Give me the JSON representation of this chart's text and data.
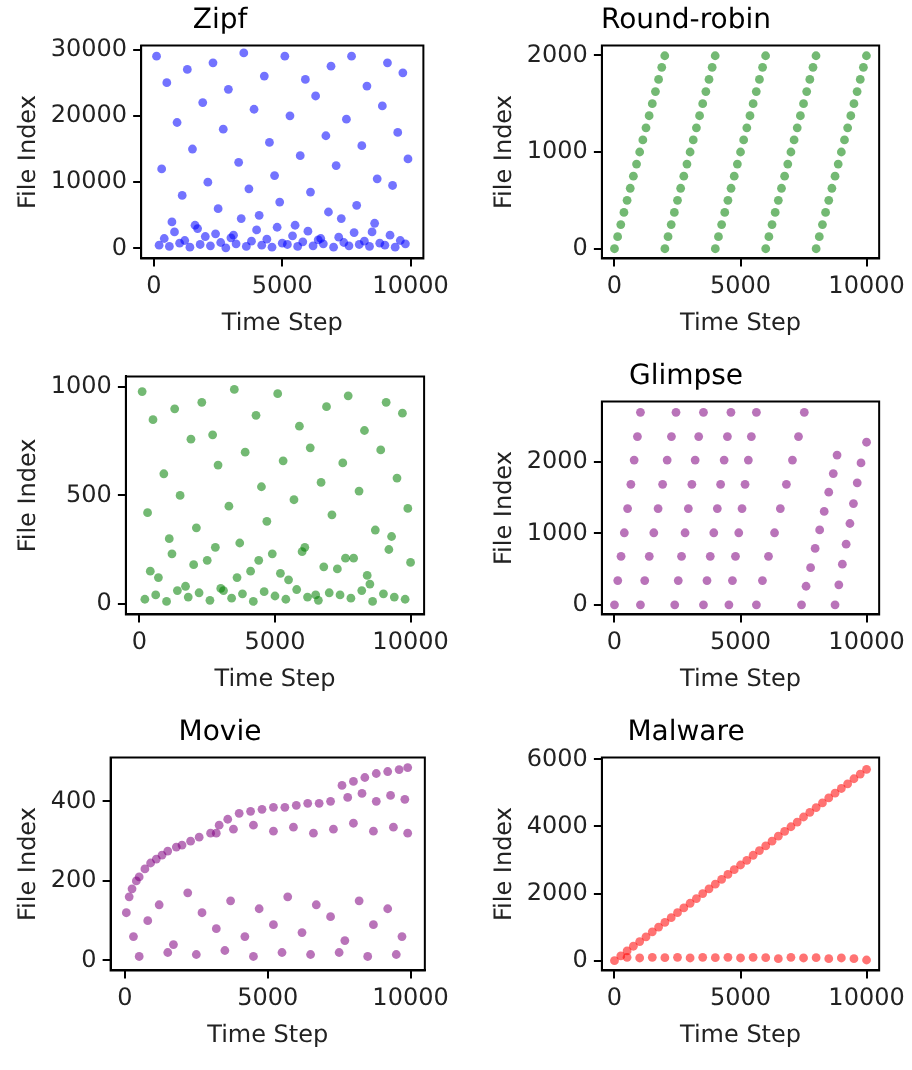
{
  "chart_data": [
    {
      "type": "scatter",
      "title": "Zipf",
      "xlabel": "Time Step",
      "ylabel": "File Index",
      "color": "#0000ff",
      "marker": "circle",
      "xlim": [
        -500,
        10500
      ],
      "ylim": [
        -1500,
        30600
      ],
      "xticks": [
        0,
        5000,
        10000
      ],
      "yticks": [
        0,
        10000,
        20000,
        30000
      ],
      "x": [
        100,
        300,
        500,
        700,
        900,
        1100,
        1300,
        1500,
        1700,
        1900,
        2100,
        2300,
        2500,
        2700,
        2900,
        3100,
        3300,
        3500,
        3700,
        3900,
        4100,
        4300,
        4500,
        4700,
        4900,
        5100,
        5300,
        5500,
        5700,
        5900,
        6100,
        6300,
        6500,
        6700,
        6900,
        7100,
        7300,
        7500,
        7700,
        7900,
        8100,
        8300,
        8500,
        8700,
        8900,
        9100,
        9300,
        9500,
        9700,
        9900,
        200,
        400,
        600,
        800,
        1000,
        1200,
        1400,
        1600,
        1800,
        2000,
        2200,
        2400,
        2600,
        2800,
        3000,
        3200,
        3400,
        3600,
        3800,
        4000,
        4200,
        4400,
        4600,
        4800,
        5000,
        5200,
        5400,
        5600,
        5800,
        6000,
        6200,
        6400,
        6600,
        6800,
        7000,
        7200,
        7400,
        7600,
        7800,
        8000,
        8200,
        8400,
        8600,
        8800,
        9000,
        9200,
        9400,
        9600,
        9800
      ],
      "values": [
        29000,
        12000,
        25000,
        4000,
        19000,
        8000,
        27000,
        15000,
        3000,
        22000,
        10000,
        28000,
        6000,
        18000,
        24000,
        2000,
        13000,
        29500,
        9000,
        21000,
        5000,
        26000,
        16000,
        11000,
        7000,
        29000,
        20000,
        3500,
        14000,
        25500,
        8500,
        23000,
        1500,
        17000,
        27500,
        12500,
        4500,
        19500,
        29000,
        6500,
        15500,
        24500,
        2500,
        10500,
        21500,
        28000,
        9500,
        17500,
        26500,
        13500,
        500,
        1500,
        300,
        2500,
        800,
        1200,
        200,
        3500,
        600,
        1800,
        400,
        2200,
        900,
        100,
        1600,
        700,
        4500,
        300,
        1100,
        2800,
        500,
        1400,
        200,
        3200,
        800,
        600,
        1900,
        300,
        1000,
        2600,
        400,
        1300,
        700,
        5500,
        200,
        1700,
        900,
        400,
        2400,
        600,
        1100,
        300,
        3800,
        800,
        500,
        2000,
        200,
        1200,
        700
      ]
    },
    {
      "type": "scatter",
      "title": "Round-robin",
      "xlabel": "Time Step",
      "ylabel": "File Index",
      "color": "#008000",
      "marker": "circle",
      "xlim": [
        -500,
        10500
      ],
      "ylim": [
        -100,
        2100
      ],
      "xticks": [
        0,
        5000,
        10000
      ],
      "yticks": [
        0,
        1000,
        2000
      ],
      "x": [
        0,
        125,
        250,
        375,
        500,
        625,
        750,
        875,
        1000,
        1125,
        1250,
        1375,
        1500,
        1625,
        1750,
        1875,
        1995,
        2000,
        2125,
        2250,
        2375,
        2500,
        2625,
        2750,
        2875,
        3000,
        3125,
        3250,
        3375,
        3500,
        3625,
        3750,
        3875,
        3995,
        4000,
        4125,
        4250,
        4375,
        4500,
        4625,
        4750,
        4875,
        5000,
        5125,
        5250,
        5375,
        5500,
        5625,
        5750,
        5875,
        5995,
        6000,
        6125,
        6250,
        6375,
        6500,
        6625,
        6750,
        6875,
        7000,
        7125,
        7250,
        7375,
        7500,
        7625,
        7750,
        7875,
        7995,
        8000,
        8125,
        8250,
        8375,
        8500,
        8625,
        8750,
        8875,
        9000,
        9125,
        9250,
        9375,
        9500,
        9625,
        9750,
        9875,
        9995
      ],
      "values": [
        0,
        125,
        250,
        375,
        500,
        625,
        750,
        875,
        1000,
        1125,
        1250,
        1375,
        1500,
        1625,
        1750,
        1875,
        1995,
        0,
        125,
        250,
        375,
        500,
        625,
        750,
        875,
        1000,
        1125,
        1250,
        1375,
        1500,
        1625,
        1750,
        1875,
        1995,
        0,
        125,
        250,
        375,
        500,
        625,
        750,
        875,
        1000,
        1125,
        1250,
        1375,
        1500,
        1625,
        1750,
        1875,
        1995,
        0,
        125,
        250,
        375,
        500,
        625,
        750,
        875,
        1000,
        1125,
        1250,
        1375,
        1500,
        1625,
        1750,
        1875,
        1995,
        0,
        125,
        250,
        375,
        500,
        625,
        750,
        875,
        1000,
        1125,
        1250,
        1375,
        1500,
        1625,
        1750,
        1875,
        1995
      ]
    },
    {
      "type": "scatter",
      "xlabel": "Time Step",
      "ylabel": "File Index",
      "color": "#008000",
      "marker": "circle",
      "xlim": [
        -500,
        10500
      ],
      "ylim": [
        -50,
        1050
      ],
      "xticks": [
        0,
        5000,
        10000
      ],
      "yticks": [
        0,
        500,
        1000
      ],
      "x": [
        100,
        300,
        500,
        700,
        900,
        1100,
        1300,
        1500,
        1700,
        1900,
        2100,
        2300,
        2500,
        2700,
        2900,
        3100,
        3300,
        3500,
        3700,
        3900,
        4100,
        4300,
        4500,
        4700,
        4900,
        5100,
        5300,
        5500,
        5700,
        5900,
        6100,
        6300,
        6500,
        6700,
        6900,
        7100,
        7300,
        7500,
        7700,
        7900,
        8100,
        8300,
        8500,
        8700,
        8900,
        9100,
        9300,
        9500,
        9700,
        9900,
        200,
        600,
        1000,
        1400,
        1800,
        2200,
        2600,
        3000,
        3400,
        3800,
        4200,
        4600,
        5000,
        5400,
        5800,
        6200,
        6600,
        7000,
        7400,
        7800,
        8200,
        8600,
        9000,
        9400,
        9800,
        400,
        1200,
        2000,
        2800,
        3600,
        4400,
        5200,
        6000,
        6800,
        7600,
        8400,
        9200,
        10000
      ],
      "values": [
        980,
        420,
        850,
        120,
        600,
        300,
        900,
        500,
        80,
        760,
        350,
        930,
        200,
        780,
        640,
        60,
        450,
        990,
        280,
        700,
        150,
        870,
        540,
        380,
        230,
        970,
        660,
        110,
        480,
        820,
        260,
        720,
        40,
        560,
        910,
        410,
        160,
        650,
        960,
        210,
        520,
        800,
        90,
        340,
        710,
        930,
        310,
        580,
        880,
        440,
        20,
        40,
        10,
        60,
        30,
        50,
        15,
        70,
        25,
        45,
        10,
        55,
        35,
        20,
        65,
        30,
        15,
        50,
        40,
        25,
        60,
        10,
        45,
        30,
        20,
        150,
        230,
        180,
        260,
        120,
        200,
        140,
        240,
        170,
        210,
        130,
        250,
        190
      ]
    },
    {
      "type": "scatter",
      "title": "Glimpse",
      "xlabel": "Time Step",
      "ylabel": "File Index",
      "color": "#800080",
      "marker": "circle",
      "xlim": [
        -500,
        10500
      ],
      "ylim": [
        -135,
        2850
      ],
      "xticks": [
        0,
        5000,
        10000
      ],
      "yticks": [
        0,
        1000,
        2000
      ],
      "x": [
        0,
        130,
        260,
        390,
        520,
        650,
        780,
        910,
        1030,
        1030,
        1200,
        1380,
        1560,
        1730,
        1910,
        2090,
        2260,
        2440,
        2390,
        2530,
        2660,
        2800,
        2930,
        3070,
        3200,
        3340,
        3530,
        3530,
        3670,
        3800,
        3940,
        4080,
        4210,
        4350,
        4480,
        4620,
        4540,
        4680,
        4800,
        4930,
        5060,
        5180,
        5310,
        5430,
        5630,
        5630,
        5870,
        6110,
        6350,
        6580,
        6820,
        7060,
        7300,
        7530,
        7420,
        7600,
        7780,
        7960,
        8140,
        8320,
        8500,
        8680,
        8830,
        8750,
        8900,
        9040,
        9190,
        9340,
        9480,
        9630,
        9780,
        10000
      ],
      "values": [
        0,
        340,
        680,
        1010,
        1350,
        1690,
        2030,
        2360,
        2700,
        0,
        340,
        680,
        1010,
        1350,
        1690,
        2030,
        2360,
        2700,
        0,
        340,
        680,
        1010,
        1350,
        1690,
        2030,
        2360,
        2700,
        0,
        340,
        680,
        1010,
        1350,
        1690,
        2030,
        2360,
        2700,
        0,
        340,
        680,
        1010,
        1350,
        1690,
        2030,
        2360,
        2700,
        0,
        340,
        680,
        1010,
        1350,
        1690,
        2030,
        2360,
        2700,
        0,
        260,
        520,
        790,
        1050,
        1310,
        1580,
        1840,
        2100,
        0,
        280,
        570,
        850,
        1140,
        1420,
        1710,
        1990,
        2280
      ]
    },
    {
      "type": "scatter",
      "title": "Movie",
      "xlabel": "Time Step",
      "ylabel": "File Index",
      "color": "#800080",
      "marker": "circle",
      "xlim": [
        -500,
        10500
      ],
      "ylim": [
        -25,
        510
      ],
      "xticks": [
        0,
        5000,
        10000
      ],
      "yticks": [
        0,
        200,
        400
      ],
      "x": [
        50,
        150,
        250,
        400,
        500,
        700,
        900,
        1100,
        1300,
        1500,
        1800,
        2000,
        2300,
        2600,
        3000,
        3300,
        3600,
        4000,
        4400,
        4800,
        5200,
        5600,
        6000,
        6400,
        6800,
        7200,
        7600,
        8000,
        8400,
        8800,
        9200,
        9600,
        9900,
        300,
        800,
        1200,
        1700,
        2200,
        2700,
        3200,
        3700,
        4200,
        4700,
        5200,
        5700,
        6200,
        6700,
        7200,
        7700,
        8200,
        8700,
        9200,
        9700,
        3200,
        3800,
        4500,
        5200,
        5900,
        6600,
        7300,
        8000,
        8700,
        9400,
        9900,
        7800,
        8300,
        8800,
        9300,
        9800,
        500,
        1500,
        2500,
        3500,
        4500,
        5500,
        6500,
        7500,
        8500,
        9500
      ],
      "values": [
        120,
        160,
        180,
        200,
        210,
        230,
        245,
        255,
        265,
        275,
        285,
        290,
        300,
        310,
        320,
        340,
        355,
        370,
        375,
        380,
        385,
        385,
        390,
        395,
        395,
        400,
        440,
        450,
        460,
        470,
        475,
        480,
        485,
        60,
        100,
        140,
        40,
        170,
        120,
        80,
        150,
        60,
        130,
        90,
        160,
        70,
        140,
        110,
        50,
        150,
        90,
        130,
        60,
        320,
        330,
        340,
        325,
        335,
        320,
        330,
        345,
        325,
        335,
        320,
        410,
        420,
        400,
        415,
        405,
        10,
        20,
        15,
        25,
        10,
        20,
        15,
        20,
        10,
        15
      ]
    },
    {
      "type": "scatter",
      "title": "Malware",
      "xlabel": "Time Step",
      "ylabel": "File Index",
      "color": "#ff0000",
      "marker": "circle",
      "xlim": [
        -500,
        10500
      ],
      "ylim": [
        -290,
        6050
      ],
      "xticks": [
        0,
        5000,
        10000
      ],
      "yticks": [
        0,
        2000,
        4000,
        6000
      ],
      "x": [
        0,
        250,
        500,
        750,
        1000,
        1250,
        1500,
        1750,
        2000,
        2250,
        2500,
        2750,
        3000,
        3250,
        3500,
        3750,
        4000,
        4250,
        4500,
        4750,
        5000,
        5250,
        5500,
        5750,
        6000,
        6250,
        6500,
        6750,
        7000,
        7250,
        7500,
        7750,
        8000,
        8250,
        8500,
        8750,
        9000,
        9250,
        9500,
        9750,
        10000,
        500,
        1000,
        1500,
        2000,
        2500,
        3000,
        3500,
        4000,
        4500,
        5000,
        5500,
        6000,
        6500,
        7000,
        7500,
        8000,
        8500,
        9000,
        9500,
        10000
      ],
      "values": [
        0,
        140,
        290,
        430,
        570,
        710,
        860,
        1000,
        1140,
        1280,
        1430,
        1570,
        1710,
        1850,
        2000,
        2140,
        2280,
        2420,
        2570,
        2710,
        2850,
        2990,
        3140,
        3280,
        3420,
        3560,
        3710,
        3850,
        3990,
        4130,
        4280,
        4420,
        4560,
        4700,
        4850,
        4990,
        5130,
        5270,
        5420,
        5560,
        5700,
        100,
        80,
        100,
        90,
        100,
        80,
        100,
        90,
        100,
        80,
        100,
        90,
        60,
        100,
        80,
        90,
        60,
        80,
        60,
        20
      ]
    }
  ]
}
